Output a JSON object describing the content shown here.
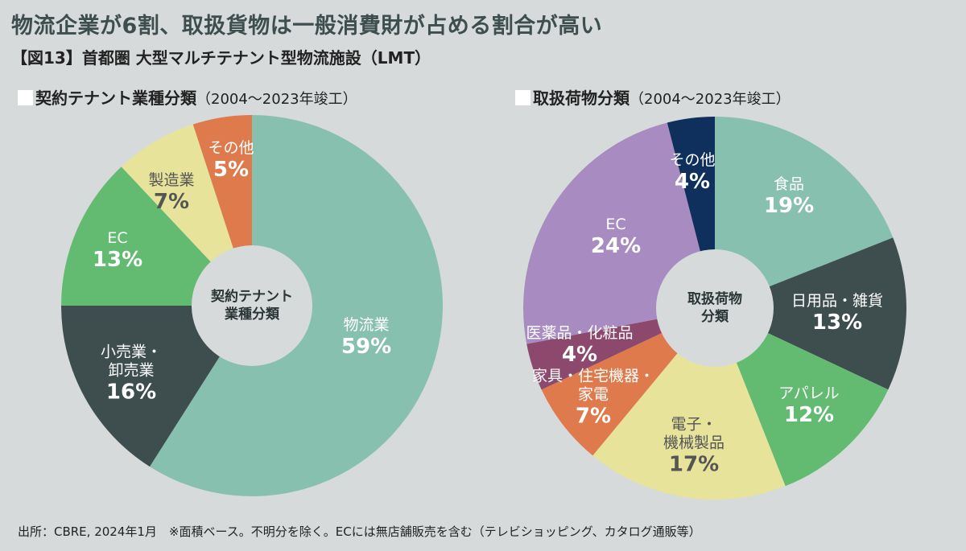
{
  "header": {
    "title": "物流企業が6割、取扱貨物は一般消費財が占める割合が高い",
    "subtitle": "【図13】首都圏 大型マルチテナント型物流施設（LMT）"
  },
  "chart_data": [
    {
      "type": "pie",
      "donut": true,
      "title": "契約テナント業種分類",
      "period": "（2004〜2023年竣工）",
      "center_label": "契約テナント\n業種分類",
      "categories": [
        "物流業",
        "小売業・\n卸売業",
        "EC",
        "製造業",
        "その他"
      ],
      "values": [
        59,
        16,
        13,
        7,
        5
      ],
      "value_labels": [
        "59%",
        "16%",
        "13%",
        "7%",
        "5%"
      ],
      "colors": [
        "#88c0b0",
        "#3e4d4e",
        "#63bb72",
        "#e7e39b",
        "#de7a4c"
      ],
      "label_colors": [
        "#ffffff",
        "#ffffff",
        "#ffffff",
        "#555555",
        "#ffffff"
      ]
    },
    {
      "type": "pie",
      "donut": true,
      "title": "取扱荷物分類",
      "period": "（2004〜2023年竣工）",
      "center_label": "取扱荷物\n分類",
      "categories": [
        "食品",
        "日用品・雑貨",
        "アパレル",
        "電子・\n機械製品",
        "家具・住宅機器・\n家電",
        "医薬品・化粧品",
        "EC",
        "その他"
      ],
      "values": [
        19,
        13,
        12,
        17,
        7,
        4,
        24,
        4
      ],
      "value_labels": [
        "19%",
        "13%",
        "12%",
        "17%",
        "7%",
        "4%",
        "24%",
        "4%"
      ],
      "colors": [
        "#88c0b0",
        "#3e4d4e",
        "#63bb72",
        "#e7e39b",
        "#de7a4c",
        "#8c496d",
        "#a88bc0",
        "#0f2f5c"
      ],
      "label_colors": [
        "#ffffff",
        "#ffffff",
        "#ffffff",
        "#555555",
        "#ffffff",
        "#ffffff",
        "#ffffff",
        "#ffffff"
      ]
    }
  ],
  "footer": {
    "source": "出所：CBRE, 2024年1月　※面積ベース。不明分を除く。ECには無店舗販売を含む（テレビショッピング、カタログ通販等）"
  }
}
